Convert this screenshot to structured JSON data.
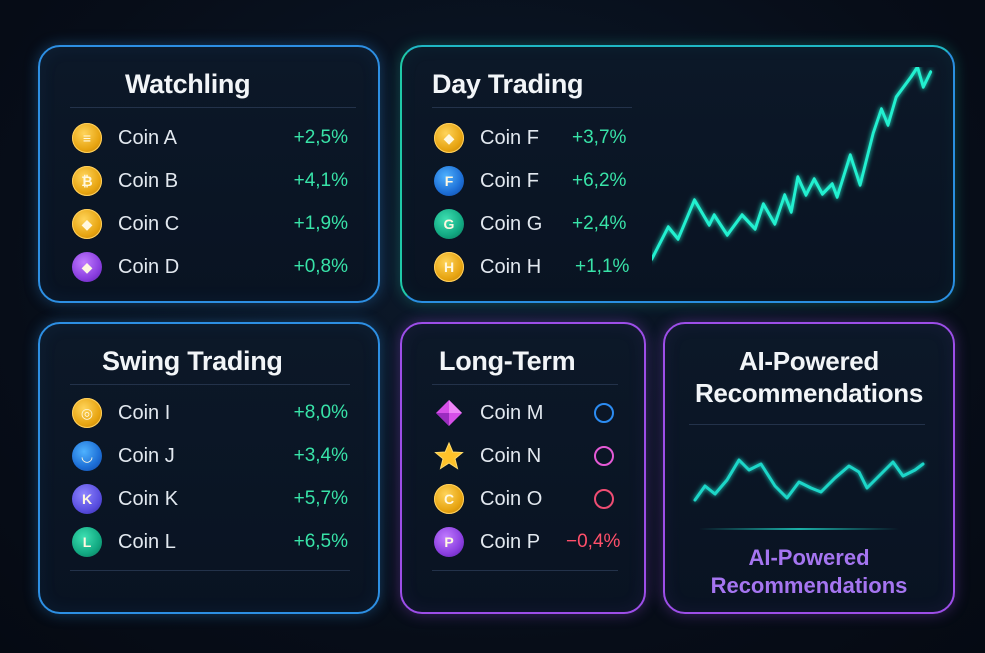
{
  "watchlist": {
    "title": "Watchling",
    "items": [
      {
        "name": "Coin A",
        "change": "+2,5%",
        "icon": "coin-a-icon",
        "glyph": "≡",
        "color": "gold"
      },
      {
        "name": "Coin B",
        "change": "+4,1%",
        "icon": "coin-b-icon",
        "glyph": "₿",
        "color": "gold"
      },
      {
        "name": "Coin C",
        "change": "+1,9%",
        "icon": "coin-c-icon",
        "glyph": "◆",
        "color": "gold"
      },
      {
        "name": "Coin D",
        "change": "+0,8%",
        "icon": "coin-d-icon",
        "glyph": "◆",
        "color": "purple"
      }
    ]
  },
  "day_trading": {
    "title": "Day Trading",
    "items": [
      {
        "name": "Coin F",
        "change": "+3,7%",
        "icon": "coin-f-gold-icon",
        "glyph": "◆",
        "color": "gold"
      },
      {
        "name": "Coin F",
        "change": "+6,2%",
        "icon": "coin-f-blue-icon",
        "glyph": "F",
        "color": "blue"
      },
      {
        "name": "Coin G",
        "change": "+2,4%",
        "icon": "coin-g-icon",
        "glyph": "G",
        "color": "green"
      },
      {
        "name": "Coin H",
        "change": "+1,1%",
        "icon": "coin-h-icon",
        "glyph": "H",
        "color": "gold"
      }
    ],
    "chart_color": "#22f0d0"
  },
  "swing_trading": {
    "title": "Swing Trading",
    "items": [
      {
        "name": "Coin I",
        "change": "+8,0%",
        "icon": "coin-i-icon",
        "glyph": "◎",
        "color": "gold"
      },
      {
        "name": "Coin J",
        "change": "+3,4%",
        "icon": "coin-j-icon",
        "glyph": "◡",
        "color": "blue"
      },
      {
        "name": "Coin K",
        "change": "+5,7%",
        "icon": "coin-k-icon",
        "glyph": "K",
        "color": "violet"
      },
      {
        "name": "Coin L",
        "change": "+6,5%",
        "icon": "coin-l-icon",
        "glyph": "L",
        "color": "green"
      }
    ]
  },
  "long_term": {
    "title": "Long-Term",
    "items": [
      {
        "name": "Coin M",
        "icon": "coin-m-diamond-icon",
        "status": "ring-blue-icon"
      },
      {
        "name": "Coin N",
        "icon": "coin-n-star-icon",
        "status": "ring-pink-icon"
      },
      {
        "name": "Coin O",
        "icon": "coin-o-icon",
        "glyph": "C",
        "status": "ring-red-icon"
      },
      {
        "name": "Coin P",
        "icon": "coin-p-icon",
        "glyph": "P",
        "change": "−0,4%"
      }
    ]
  },
  "ai": {
    "title_line1": "AI-Powered",
    "title_line2": "Recommendations",
    "subtitle_line1": "AI-Powered",
    "subtitle_line2": "Recommendations",
    "chart_color": "#1fd6c8"
  },
  "colors": {
    "positive": "#38e3a8",
    "negative": "#ff4f6a",
    "border_blue": "#2d8fe3",
    "border_purple": "#9d4ee8"
  }
}
